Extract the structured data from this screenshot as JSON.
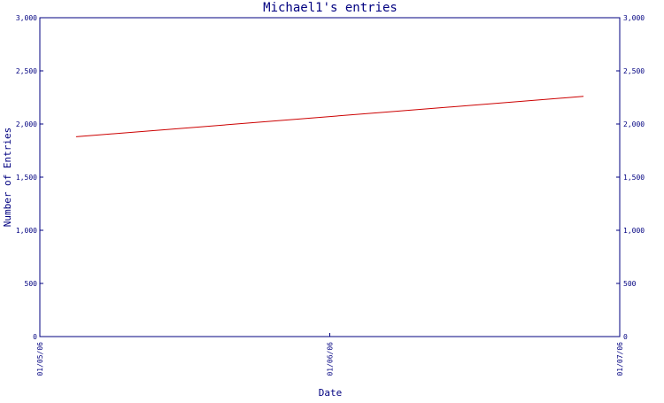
{
  "chart_data": {
    "type": "line",
    "title": "Michael1's entries",
    "xlabel": "Date",
    "ylabel": "Number of Entries",
    "x_ticks": [
      "01/05/06",
      "01/06/06",
      "01/07/06"
    ],
    "y_ticks": [
      "0",
      "500",
      "1,000",
      "1,500",
      "2,000",
      "2,500",
      "3,000"
    ],
    "ylim": [
      0,
      3000
    ],
    "xlim": [
      "2006-01-05",
      "2006-01-07"
    ],
    "grid": false,
    "series": [
      {
        "x": [
          "2006-01-05 03:00",
          "2006-01-06 21:00"
        ],
        "values": [
          1880,
          2260
        ]
      }
    ],
    "colors": {
      "axis": "#000080",
      "line": "#cc0000"
    }
  }
}
